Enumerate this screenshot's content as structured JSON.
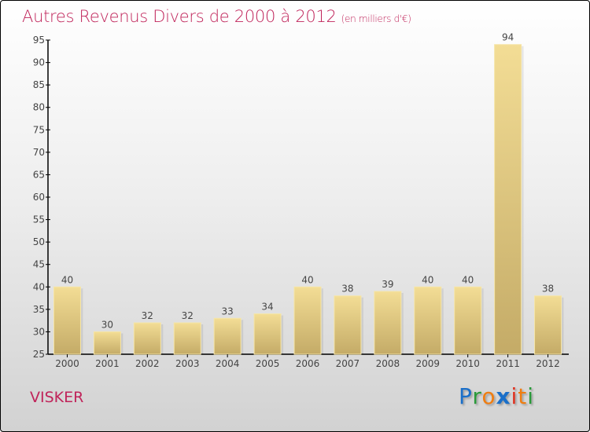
{
  "chart_data": {
    "type": "bar",
    "title": "Autres Revenus Divers de 2000 à 2012",
    "unit_label": "(en milliers d'€)",
    "categories": [
      "2000",
      "2001",
      "2002",
      "2003",
      "2004",
      "2005",
      "2006",
      "2007",
      "2008",
      "2009",
      "2010",
      "2011",
      "2012"
    ],
    "values": [
      40,
      30,
      32,
      32,
      33,
      34,
      40,
      38,
      39,
      40,
      40,
      94,
      38
    ],
    "xlabel": "",
    "ylabel": "",
    "ylim": [
      25,
      95
    ],
    "yticks": [
      25,
      30,
      35,
      40,
      45,
      50,
      55,
      60,
      65,
      70,
      75,
      80,
      85,
      90,
      95
    ],
    "grid": false,
    "bar_color_top": "#f3dd95",
    "bar_color_bottom": "#c4ab67"
  },
  "footer": {
    "town": "VISKER",
    "logo": "Proxiti"
  },
  "colors": {
    "title": "#c0245a"
  }
}
